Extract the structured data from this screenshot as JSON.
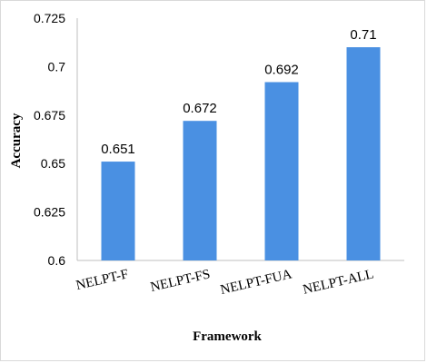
{
  "chart_data": {
    "type": "bar",
    "categories": [
      "NELPT-F",
      "NELPT-FS",
      "NELPT-FUA",
      "NELPT-ALL"
    ],
    "values": [
      0.651,
      0.672,
      0.692,
      0.71
    ],
    "value_labels": [
      "0.651",
      "0.672",
      "0.692",
      "0.71"
    ],
    "yticks": [
      0.6,
      0.625,
      0.65,
      0.675,
      0.7,
      0.725
    ],
    "ytick_labels": [
      "0.6",
      "0.625",
      "0.65",
      "0.675",
      "0.7",
      "0.725"
    ],
    "ylim": [
      0.6,
      0.725
    ],
    "xlabel": "Framework",
    "ylabel": "Accuracy",
    "grid": false,
    "legend": false,
    "bar_color": "#4a90e2"
  }
}
